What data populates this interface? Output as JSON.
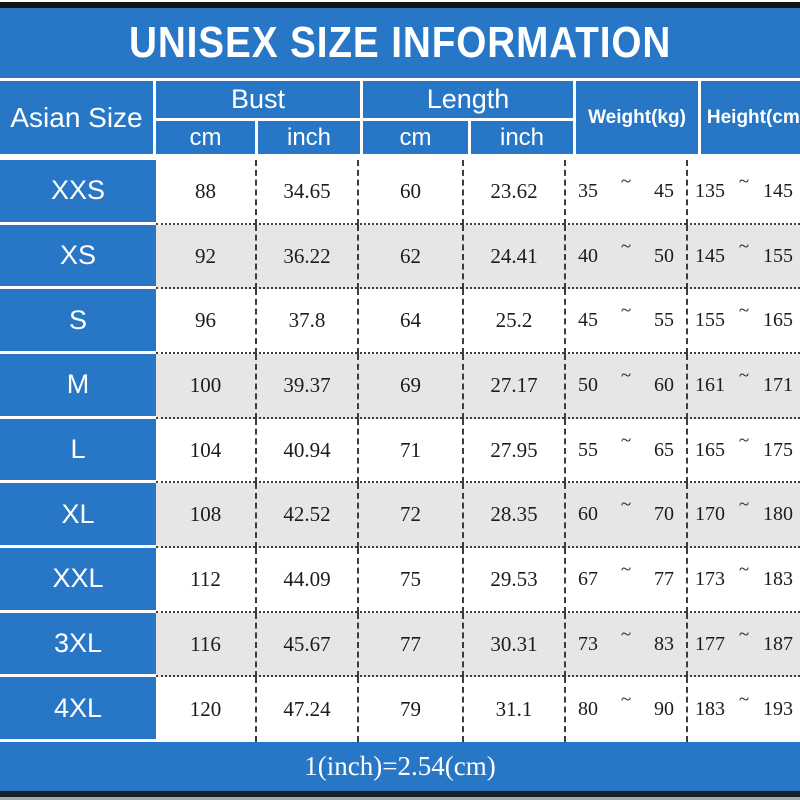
{
  "title": "UNISEX SIZE INFORMATION",
  "tilde": "~",
  "header": {
    "asian_size": "Asian Size",
    "bust": "Bust",
    "length": "Length",
    "weight": "Weight(kg)",
    "height": "Height(cm)",
    "cm": "cm",
    "inch": "inch"
  },
  "rows": [
    {
      "size": "XXS",
      "bust_cm": "88",
      "bust_inch": "34.65",
      "length_cm": "60",
      "length_inch": "23.62",
      "weight_min": "35",
      "weight_max": "45",
      "height_min": "135",
      "height_max": "145"
    },
    {
      "size": "XS",
      "bust_cm": "92",
      "bust_inch": "36.22",
      "length_cm": "62",
      "length_inch": "24.41",
      "weight_min": "40",
      "weight_max": "50",
      "height_min": "145",
      "height_max": "155"
    },
    {
      "size": "S",
      "bust_cm": "96",
      "bust_inch": "37.8",
      "length_cm": "64",
      "length_inch": "25.2",
      "weight_min": "45",
      "weight_max": "55",
      "height_min": "155",
      "height_max": "165"
    },
    {
      "size": "M",
      "bust_cm": "100",
      "bust_inch": "39.37",
      "length_cm": "69",
      "length_inch": "27.17",
      "weight_min": "50",
      "weight_max": "60",
      "height_min": "161",
      "height_max": "171"
    },
    {
      "size": "L",
      "bust_cm": "104",
      "bust_inch": "40.94",
      "length_cm": "71",
      "length_inch": "27.95",
      "weight_min": "55",
      "weight_max": "65",
      "height_min": "165",
      "height_max": "175"
    },
    {
      "size": "XL",
      "bust_cm": "108",
      "bust_inch": "42.52",
      "length_cm": "72",
      "length_inch": "28.35",
      "weight_min": "60",
      "weight_max": "70",
      "height_min": "170",
      "height_max": "180"
    },
    {
      "size": "XXL",
      "bust_cm": "112",
      "bust_inch": "44.09",
      "length_cm": "75",
      "length_inch": "29.53",
      "weight_min": "67",
      "weight_max": "77",
      "height_min": "173",
      "height_max": "183"
    },
    {
      "size": "3XL",
      "bust_cm": "116",
      "bust_inch": "45.67",
      "length_cm": "77",
      "length_inch": "30.31",
      "weight_min": "73",
      "weight_max": "83",
      "height_min": "177",
      "height_max": "187"
    },
    {
      "size": "4XL",
      "bust_cm": "120",
      "bust_inch": "47.24",
      "length_cm": "79",
      "length_inch": "31.1",
      "weight_min": "80",
      "weight_max": "90",
      "height_min": "183",
      "height_max": "193"
    }
  ],
  "footer": "1(inch)=2.54(cm)",
  "colors": {
    "accent_blue": "#2777c6",
    "alt_row_gray": "#e6e6e6",
    "border_dark": "#3c3c3c",
    "top_bar_black": "#141414",
    "bottom_bar_navy": "#15202e"
  }
}
